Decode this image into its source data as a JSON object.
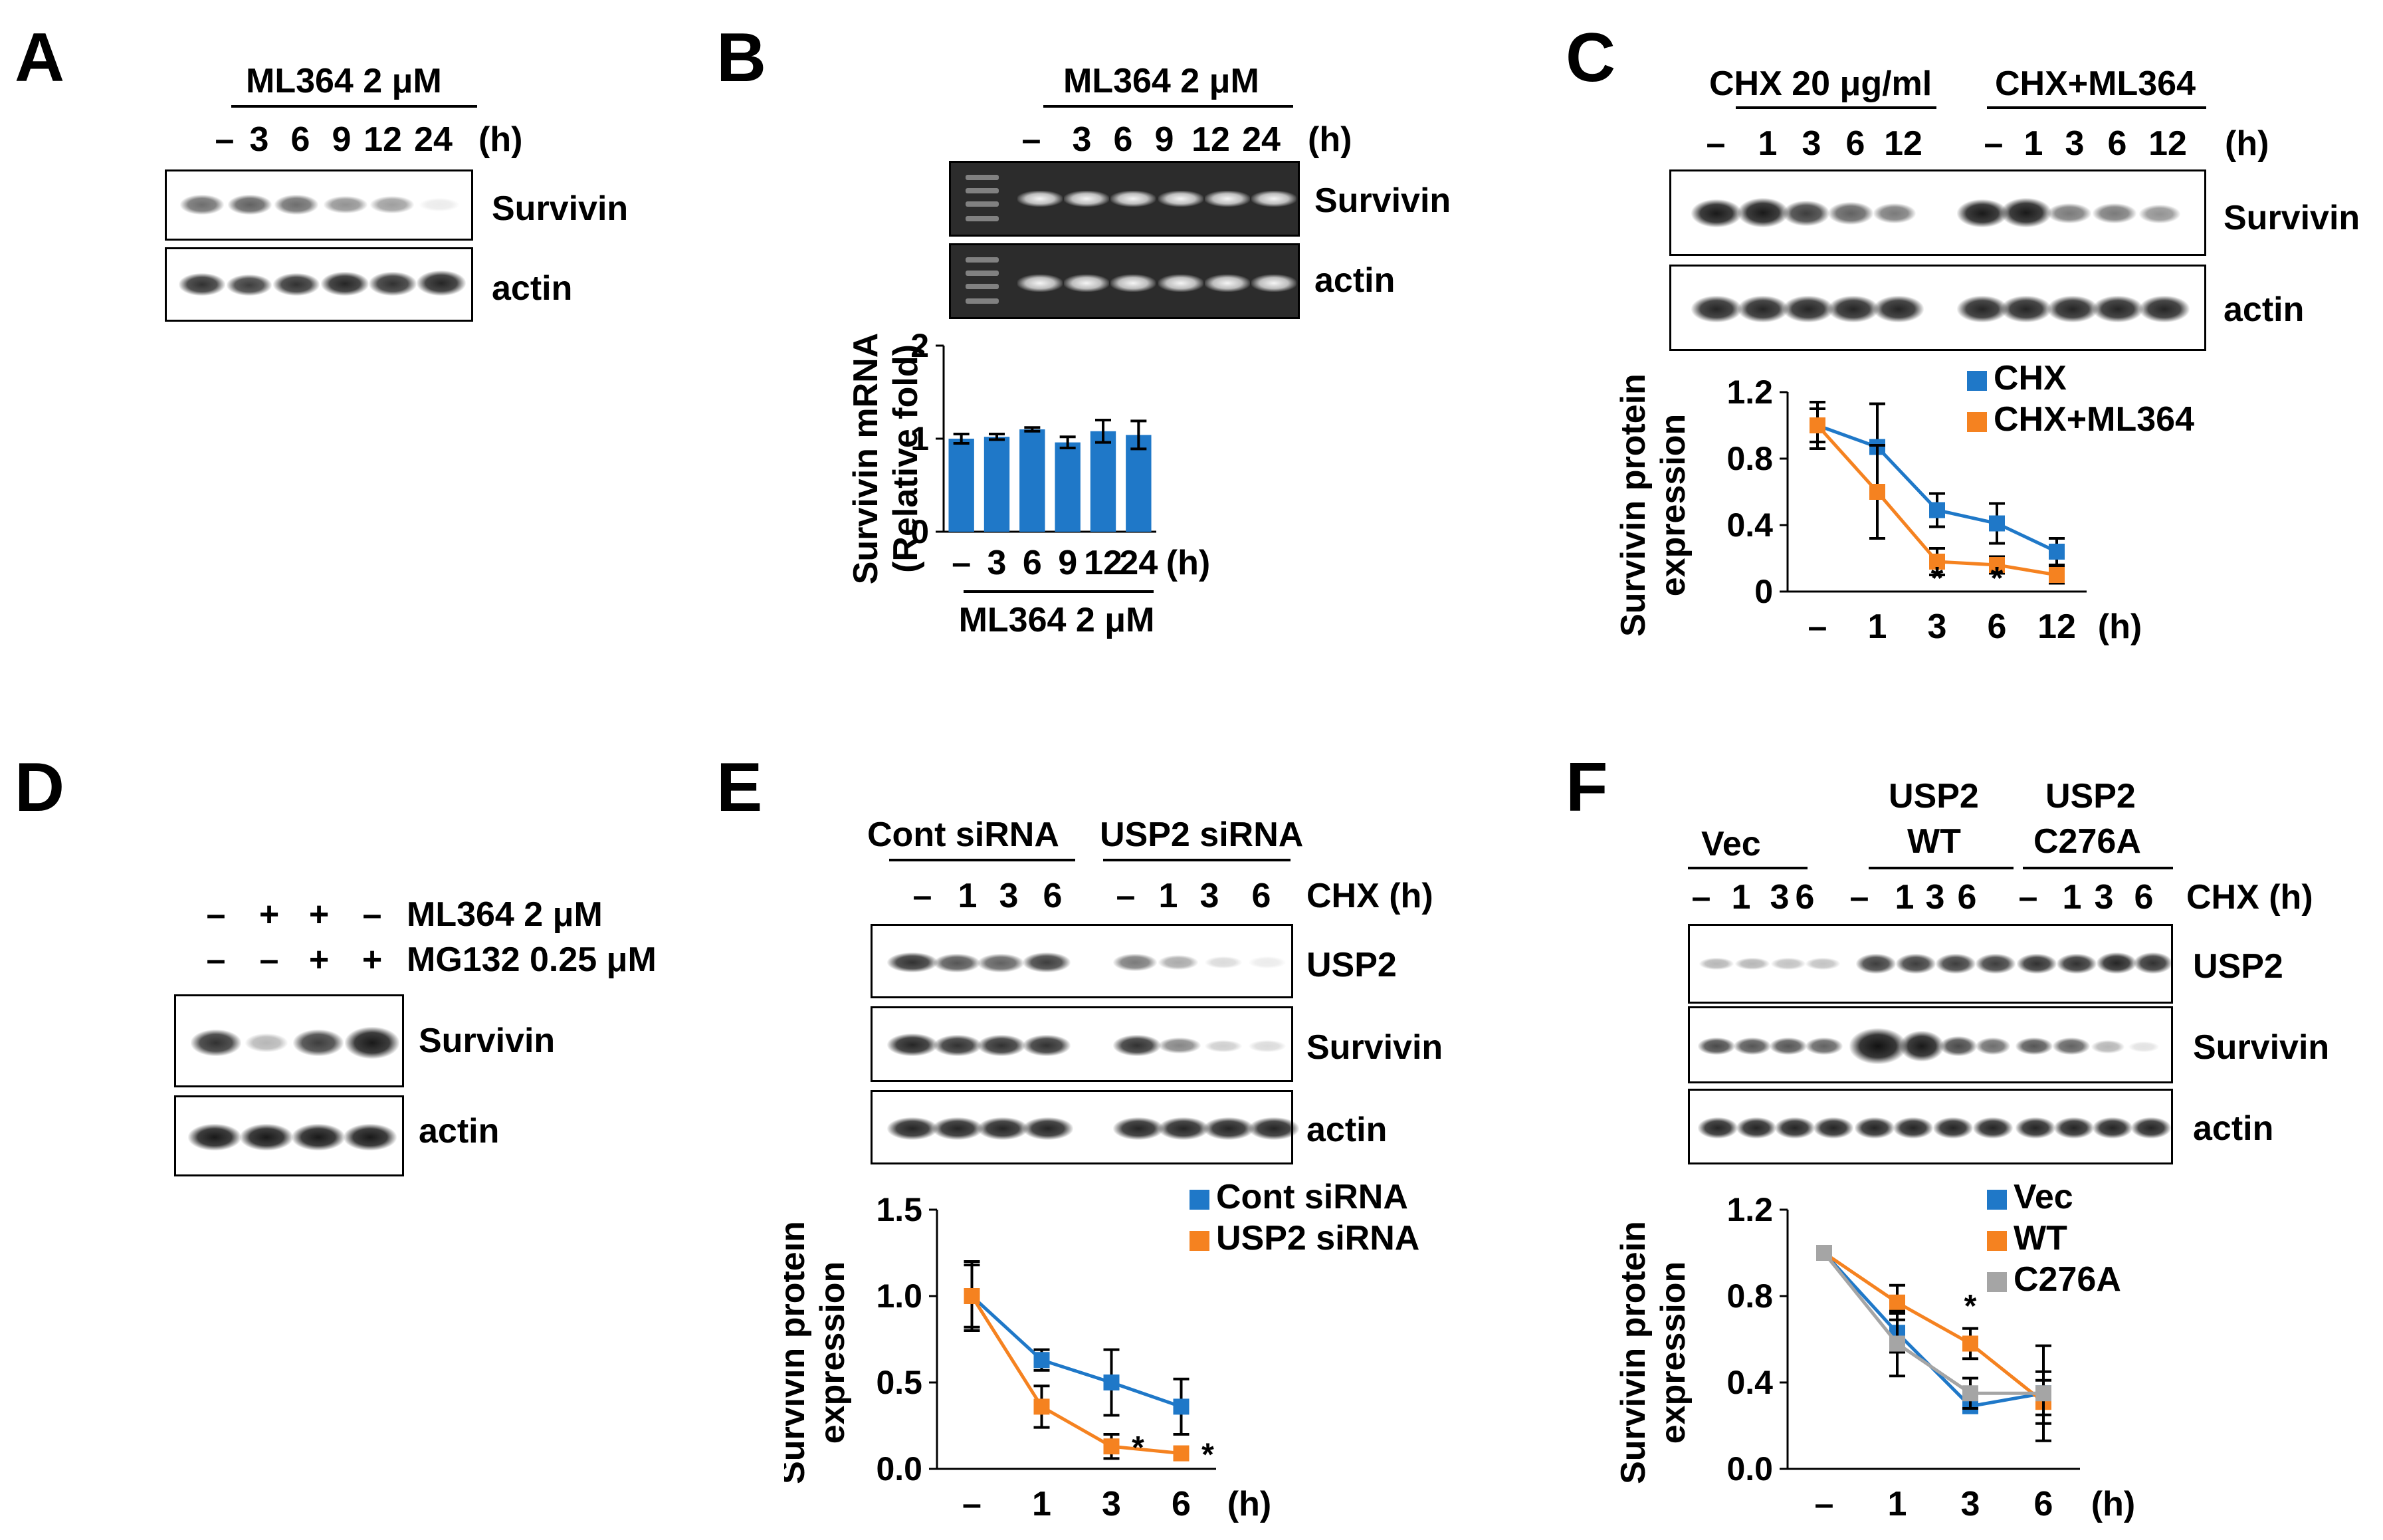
{
  "panels": {
    "A": {
      "label": "A",
      "treatment": "ML364 2 μM",
      "lanes": [
        "–",
        "3",
        "6",
        "9",
        "12",
        "24"
      ],
      "unit": "(h)",
      "blots": [
        "Survivin",
        "actin"
      ]
    },
    "B": {
      "label": "B",
      "treatment": "ML364 2 μM",
      "lanes": [
        "–",
        "3",
        "6",
        "9",
        "12",
        "24"
      ],
      "unit": "(h)",
      "gels": [
        "Survivin",
        "actin"
      ],
      "ylabel_line1": "Survivin mRNA",
      "ylabel_line2": "(Relative fold)",
      "xlabel": "ML364 2 μM"
    },
    "C": {
      "label": "C",
      "group1": "CHX 20 μg/ml",
      "group2": "CHX+ML364",
      "lanes1": [
        "–",
        "1",
        "3",
        "6",
        "12"
      ],
      "lanes2": [
        "–",
        "1",
        "3",
        "6",
        "12"
      ],
      "unit": "(h)",
      "blots": [
        "Survivin",
        "actin"
      ],
      "ylabel_line1": "Survivin protein",
      "ylabel_line2": "expression"
    },
    "D": {
      "label": "D",
      "row1_signs": [
        "–",
        "+",
        "+",
        "–"
      ],
      "row1_label": "ML364 2 μM",
      "row2_signs": [
        "–",
        "–",
        "+",
        "+"
      ],
      "row2_label": "MG132 0.25 μM",
      "blots": [
        "Survivin",
        "actin"
      ]
    },
    "E": {
      "label": "E",
      "group1": "Cont siRNA",
      "group2": "USP2 siRNA",
      "lanes1": [
        "–",
        "1",
        "3",
        "6"
      ],
      "lanes2": [
        "–",
        "1",
        "3",
        "6"
      ],
      "unit": "CHX (h)",
      "blots": [
        "USP2",
        "Survivin",
        "actin"
      ],
      "ylabel_line1": "Survivin protein",
      "ylabel_line2": "expression"
    },
    "F": {
      "label": "F",
      "group1": "Vec",
      "group2_line1": "USP2",
      "group2_line2": "WT",
      "group3_line1": "USP2",
      "group3_line2": "C276A",
      "lanes": [
        "–",
        "1",
        "3",
        "6"
      ],
      "unit": "CHX (h)",
      "blots": [
        "USP2",
        "Survivin",
        "actin"
      ],
      "ylabel_line1": "Survivin protein",
      "ylabel_line2": "expression"
    }
  },
  "chart_data": [
    {
      "id": "B",
      "type": "bar",
      "categories": [
        "–",
        "3",
        "6",
        "9",
        "12",
        "24"
      ],
      "series": [
        {
          "name": "Survivin mRNA",
          "values": [
            1.0,
            1.02,
            1.1,
            0.96,
            1.08,
            1.04
          ],
          "errors": [
            0.05,
            0.03,
            0.02,
            0.06,
            0.12,
            0.15
          ],
          "color": "#1f78c8"
        }
      ],
      "unit": "(h)",
      "ylim": [
        0,
        2
      ],
      "yticks": [
        "0",
        "1",
        "2"
      ]
    },
    {
      "id": "C",
      "type": "line",
      "categories": [
        "–",
        "1",
        "3",
        "6",
        "12"
      ],
      "series": [
        {
          "name": "CHX",
          "values": [
            1.0,
            0.87,
            0.49,
            0.41,
            0.24
          ],
          "errors": [
            0.14,
            0.26,
            0.1,
            0.12,
            0.08
          ],
          "color": "#1f78c8"
        },
        {
          "name": "CHX+ML364",
          "values": [
            1.0,
            0.6,
            0.18,
            0.16,
            0.1
          ],
          "errors": [
            0.1,
            0.28,
            0.08,
            0.05,
            0.05
          ],
          "color": "#f58220"
        }
      ],
      "significance": [
        "",
        "",
        "*",
        "*",
        ""
      ],
      "unit": "(h)",
      "ylim": [
        0,
        1.2
      ],
      "yticks": [
        "0",
        "0.4",
        "0.8",
        "1.2"
      ]
    },
    {
      "id": "E",
      "type": "line",
      "categories": [
        "–",
        "1",
        "3",
        "6"
      ],
      "series": [
        {
          "name": "Cont siRNA",
          "values": [
            1.0,
            0.63,
            0.5,
            0.36
          ],
          "errors": [
            0.2,
            0.06,
            0.19,
            0.16
          ],
          "color": "#1f78c8"
        },
        {
          "name": "USP2 siRNA",
          "values": [
            1.0,
            0.36,
            0.13,
            0.09
          ],
          "errors": [
            0.18,
            0.12,
            0.07,
            0.03
          ],
          "color": "#f58220"
        }
      ],
      "significance": [
        "",
        "",
        "*",
        "*"
      ],
      "unit": "(h)",
      "ylim": [
        0,
        1.5
      ],
      "yticks": [
        "0.0",
        "0.5",
        "1.0",
        "1.5"
      ]
    },
    {
      "id": "F",
      "type": "line",
      "categories": [
        "–",
        "1",
        "3",
        "6"
      ],
      "series": [
        {
          "name": "Vec",
          "values": [
            1.0,
            0.63,
            0.29,
            0.35
          ],
          "errors": [
            0.03,
            0.09,
            0.03,
            0.1
          ],
          "color": "#1f78c8"
        },
        {
          "name": "WT",
          "values": [
            1.0,
            0.77,
            0.58,
            0.31
          ],
          "errors": [
            0.03,
            0.08,
            0.07,
            0.1
          ],
          "color": "#f58220"
        },
        {
          "name": "C276A",
          "values": [
            1.0,
            0.58,
            0.35,
            0.35
          ],
          "errors": [
            0.03,
            0.15,
            0.07,
            0.22
          ],
          "color": "#a5a5a5"
        }
      ],
      "significance": [
        "",
        "",
        "*",
        ""
      ],
      "unit": "(h)",
      "ylim": [
        0,
        1.2
      ],
      "yticks": [
        "0.0",
        "0.4",
        "0.8",
        "1.2"
      ]
    }
  ]
}
